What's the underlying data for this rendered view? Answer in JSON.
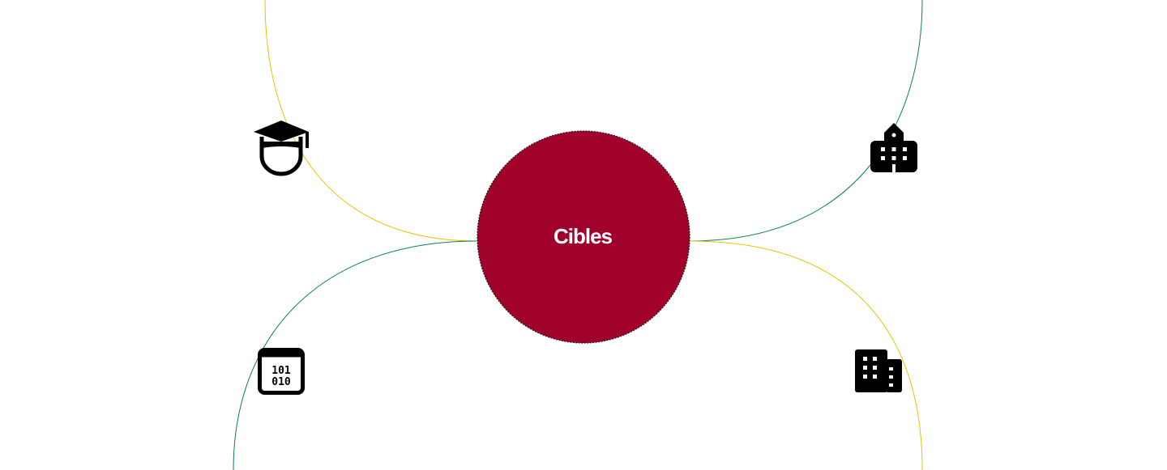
{
  "center": {
    "label": "Cibles",
    "fill_color": "#a0022c",
    "label_color": "#ffffff"
  },
  "connector_colors": {
    "yellow": "#e8c400",
    "teal": "#0d7a6a"
  },
  "icons": {
    "top_left": "graduate-student-icon",
    "top_right": "school-building-icon",
    "bottom_left": "binary-code-icon",
    "bottom_right": "office-building-icon"
  }
}
